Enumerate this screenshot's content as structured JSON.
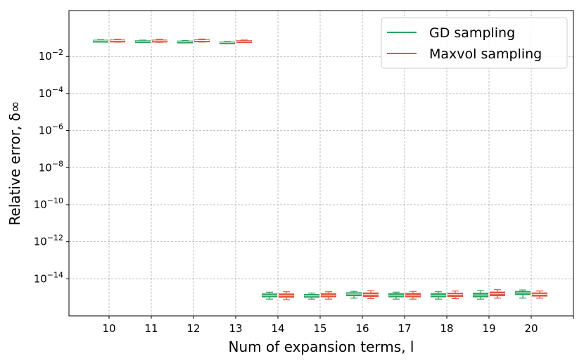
{
  "chart_data": {
    "type": "box",
    "title": "",
    "xlabel": "Num of expansion terms, l",
    "ylabel": "Relative error, δ∞",
    "y_scale": "log",
    "ylim": [
      1e-16,
      3
    ],
    "y_ticks": [
      1e-14,
      1e-12,
      1e-10,
      1e-08,
      1e-06,
      0.0001,
      0.01
    ],
    "y_tick_exponents": [
      "−14",
      "−12",
      "−10",
      "−8",
      "−6",
      "−4",
      "−2"
    ],
    "y_tick_base": "10",
    "categories": [
      "10",
      "11",
      "12",
      "13",
      "14",
      "15",
      "16",
      "17",
      "18",
      "19",
      "20"
    ],
    "grid": true,
    "legend_position": "top-right",
    "series": [
      {
        "name": "GD sampling",
        "color": "#2ca25f",
        "boxes": [
          {
            "whislo": 0.06,
            "q1": 0.066,
            "med": 0.071,
            "q3": 0.076,
            "whishi": 0.08
          },
          {
            "whislo": 0.059,
            "q1": 0.064,
            "med": 0.068,
            "q3": 0.072,
            "whishi": 0.076
          },
          {
            "whislo": 0.056,
            "q1": 0.061,
            "med": 0.065,
            "q3": 0.069,
            "whishi": 0.073
          },
          {
            "whislo": 0.05,
            "q1": 0.054,
            "med": 0.058,
            "q3": 0.062,
            "whishi": 0.066
          },
          {
            "whislo": 8e-16,
            "q1": 1.05e-15,
            "med": 1.3e-15,
            "q3": 1.55e-15,
            "whishi": 1.9e-15
          },
          {
            "whislo": 8e-16,
            "q1": 1e-15,
            "med": 1.2e-15,
            "q3": 1.45e-15,
            "whishi": 1.7e-15
          },
          {
            "whislo": 9e-16,
            "q1": 1.2e-15,
            "med": 1.5e-15,
            "q3": 1.8e-15,
            "whishi": 2.1e-15
          },
          {
            "whislo": 8e-16,
            "q1": 1.05e-15,
            "med": 1.3e-15,
            "q3": 1.6e-15,
            "whishi": 1.9e-15
          },
          {
            "whislo": 8e-16,
            "q1": 1.05e-15,
            "med": 1.3e-15,
            "q3": 1.6e-15,
            "whishi": 2e-15
          },
          {
            "whislo": 8e-16,
            "q1": 1.05e-15,
            "med": 1.35e-15,
            "q3": 1.7e-15,
            "whishi": 2.3e-15
          },
          {
            "whislo": 9e-16,
            "q1": 1.4e-15,
            "med": 1.75e-15,
            "q3": 2.1e-15,
            "whishi": 2.5e-15
          }
        ]
      },
      {
        "name": "Maxvol sampling",
        "color": "#e5533d",
        "boxes": [
          {
            "whislo": 0.059,
            "q1": 0.066,
            "med": 0.072,
            "q3": 0.078,
            "whishi": 0.085
          },
          {
            "whislo": 0.058,
            "q1": 0.065,
            "med": 0.071,
            "q3": 0.077,
            "whishi": 0.084
          },
          {
            "whislo": 0.06,
            "q1": 0.067,
            "med": 0.073,
            "q3": 0.079,
            "whishi": 0.087
          },
          {
            "whislo": 0.057,
            "q1": 0.062,
            "med": 0.067,
            "q3": 0.072,
            "whishi": 0.077
          },
          {
            "whislo": 7.5e-16,
            "q1": 1e-15,
            "med": 1.25e-15,
            "q3": 1.55e-15,
            "whishi": 2e-15
          },
          {
            "whislo": 8e-16,
            "q1": 1.05e-15,
            "med": 1.3e-15,
            "q3": 1.6e-15,
            "whishi": 2e-15
          },
          {
            "whislo": 8.5e-16,
            "q1": 1.1e-15,
            "med": 1.4e-15,
            "q3": 1.75e-15,
            "whishi": 2.3e-15
          },
          {
            "whislo": 8e-16,
            "q1": 1.05e-15,
            "med": 1.3e-15,
            "q3": 1.65e-15,
            "whishi": 2.1e-15
          },
          {
            "whislo": 8.5e-16,
            "q1": 1.1e-15,
            "med": 1.4e-15,
            "q3": 1.7e-15,
            "whishi": 2.2e-15
          },
          {
            "whislo": 9e-16,
            "q1": 1.2e-15,
            "med": 1.55e-15,
            "q3": 1.95e-15,
            "whishi": 2.6e-15
          },
          {
            "whislo": 9e-16,
            "q1": 1.15e-15,
            "med": 1.45e-15,
            "q3": 1.75e-15,
            "whishi": 2.2e-15
          }
        ]
      }
    ]
  }
}
